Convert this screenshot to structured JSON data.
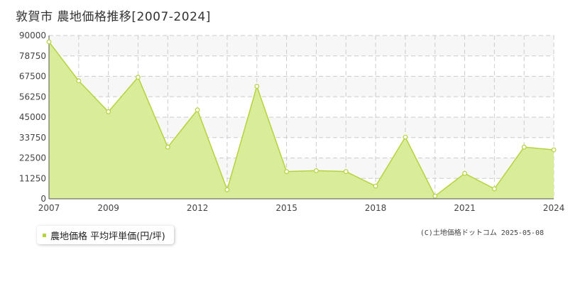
{
  "header": {
    "title": "敦賀市 農地価格推移[2007-2024]"
  },
  "legend": {
    "label": "農地価格 平均坪単価(円/坪)"
  },
  "footer": {
    "copyright": "(C)土地価格ドットコム 2025-05-08"
  },
  "colors": {
    "fill": "#d9ec99",
    "line": "#b5d33d",
    "grid": "#cccccc",
    "band": "#f7f7f7"
  },
  "chart_data": {
    "type": "area",
    "x": [
      2007,
      2008,
      2009,
      2010,
      2011,
      2012,
      2013,
      2014,
      2015,
      2016,
      2017,
      2018,
      2019,
      2020,
      2021,
      2022,
      2023,
      2024
    ],
    "values": [
      86500,
      65000,
      48000,
      67000,
      28500,
      49000,
      5000,
      62000,
      15000,
      15500,
      15000,
      7000,
      34000,
      1500,
      14000,
      5500,
      28500,
      27000
    ],
    "ylim": [
      0,
      90000
    ],
    "yticks": [
      0,
      11250,
      22500,
      33750,
      45000,
      56250,
      67500,
      78750,
      90000
    ],
    "ytick_labels": [
      "0",
      "11250",
      "22500",
      "33750",
      "45000",
      "56250",
      "67500",
      "78750",
      "90000"
    ],
    "xtick_labels": [
      {
        "year": 2007,
        "label": "2007"
      },
      {
        "year": 2009,
        "label": "2009"
      },
      {
        "year": 2012,
        "label": "2012"
      },
      {
        "year": 2015,
        "label": "2015"
      },
      {
        "year": 2018,
        "label": "2018"
      },
      {
        "year": 2021,
        "label": "2021"
      },
      {
        "year": 2024,
        "label": "2024"
      }
    ],
    "grid": true
  }
}
